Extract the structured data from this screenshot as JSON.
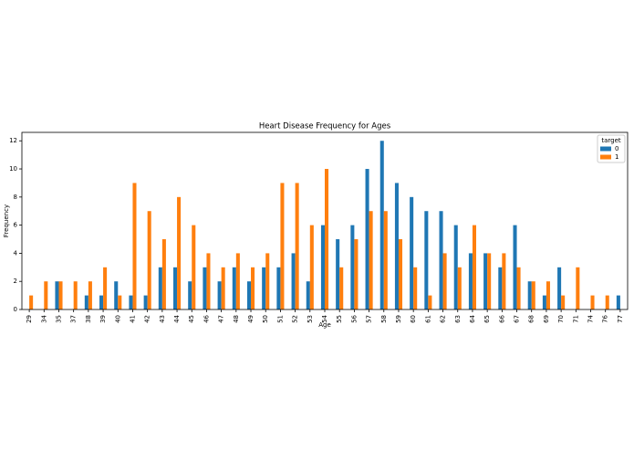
{
  "chart_data": {
    "type": "bar",
    "title": "Heart Disease Frequency for Ages",
    "x_label": "Age",
    "y_label": "Frequency",
    "categories": [
      "29",
      "34",
      "35",
      "37",
      "38",
      "39",
      "40",
      "41",
      "42",
      "43",
      "44",
      "45",
      "46",
      "47",
      "48",
      "49",
      "50",
      "51",
      "52",
      "53",
      "54",
      "55",
      "56",
      "57",
      "58",
      "59",
      "60",
      "61",
      "62",
      "63",
      "64",
      "65",
      "66",
      "67",
      "68",
      "69",
      "70",
      "71",
      "74",
      "76",
      "77"
    ],
    "series": [
      {
        "name": "0",
        "color": "#1f77b4",
        "values": [
          0,
          0,
          2,
          0,
          1,
          1,
          2,
          1,
          1,
          3,
          3,
          2,
          3,
          2,
          3,
          2,
          3,
          3,
          4,
          2,
          6,
          5,
          6,
          10,
          12,
          9,
          8,
          7,
          7,
          6,
          4,
          4,
          3,
          6,
          2,
          1,
          3,
          0,
          0,
          0,
          1
        ]
      },
      {
        "name": "1",
        "color": "#ff7f0e",
        "values": [
          1,
          2,
          2,
          2,
          2,
          3,
          1,
          9,
          7,
          5,
          8,
          6,
          4,
          3,
          4,
          3,
          4,
          9,
          9,
          6,
          10,
          3,
          5,
          7,
          7,
          5,
          3,
          1,
          4,
          3,
          6,
          4,
          4,
          3,
          2,
          2,
          1,
          3,
          1,
          1,
          0
        ]
      }
    ],
    "legend_title": "target",
    "legend_position": "upper right",
    "ylim": [
      0,
      12.6
    ],
    "yticks": [
      0,
      2,
      4,
      6,
      8,
      10,
      12
    ],
    "grid": false
  }
}
